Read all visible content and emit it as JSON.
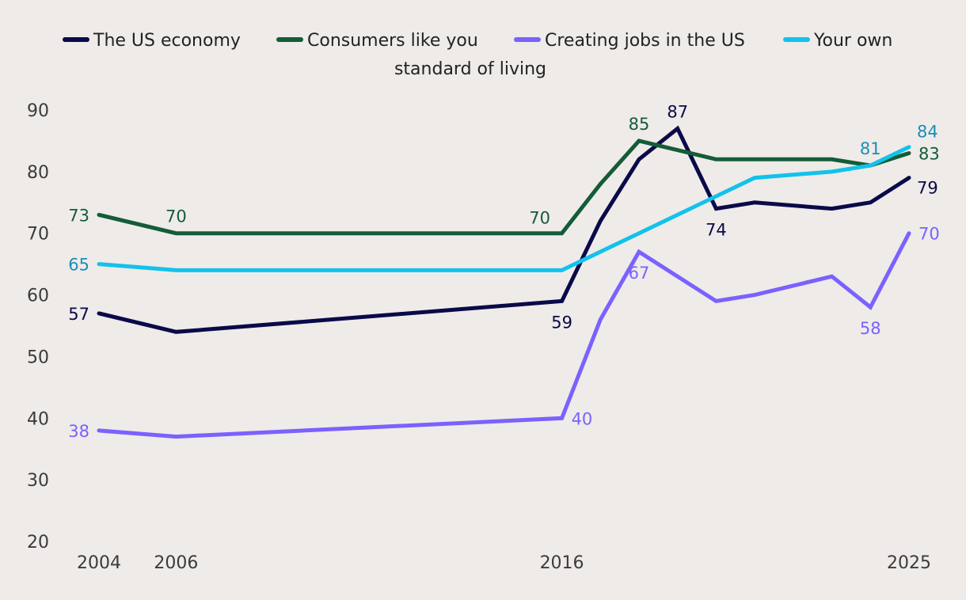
{
  "chart_data": {
    "type": "line",
    "title": "",
    "xlabel": "",
    "ylabel": "",
    "ylim": [
      20,
      90
    ],
    "yticks": [
      20,
      30,
      40,
      50,
      60,
      70,
      80,
      90
    ],
    "xlim": [
      2004,
      2025
    ],
    "xticks": [
      2004,
      2006,
      2016,
      2025
    ],
    "grid": false,
    "legend_position": "top",
    "series": [
      {
        "name": "The US economy",
        "color": "#0a0a4a",
        "points": [
          [
            2004,
            57
          ],
          [
            2006,
            54
          ],
          [
            2016,
            59
          ],
          [
            2017,
            72
          ],
          [
            2018,
            82
          ],
          [
            2019,
            87
          ],
          [
            2020,
            74
          ],
          [
            2021,
            75
          ],
          [
            2023,
            74
          ],
          [
            2024,
            75
          ],
          [
            2025,
            79
          ]
        ],
        "labels": [
          {
            "x": 2004,
            "y": 57,
            "text": "57",
            "pos": "left"
          },
          {
            "x": 2016,
            "y": 59,
            "text": "59",
            "pos": "below"
          },
          {
            "x": 2019,
            "y": 87,
            "text": "87",
            "pos": "above"
          },
          {
            "x": 2020,
            "y": 74,
            "text": "74",
            "pos": "below"
          },
          {
            "x": 2025,
            "y": 79,
            "text": "79",
            "pos": "right-below"
          }
        ]
      },
      {
        "name": "Consumers like you",
        "color": "#145c38",
        "points": [
          [
            2004,
            73
          ],
          [
            2006,
            70
          ],
          [
            2016,
            70
          ],
          [
            2017,
            78
          ],
          [
            2018,
            85
          ],
          [
            2020,
            82
          ],
          [
            2023,
            82
          ],
          [
            2024,
            81
          ],
          [
            2025,
            83
          ]
        ],
        "labels": [
          {
            "x": 2004,
            "y": 73,
            "text": "73",
            "pos": "left"
          },
          {
            "x": 2006,
            "y": 70,
            "text": "70",
            "pos": "above"
          },
          {
            "x": 2016,
            "y": 70,
            "text": "70",
            "pos": "above-left"
          },
          {
            "x": 2018,
            "y": 85,
            "text": "85",
            "pos": "above"
          },
          {
            "x": 2025,
            "y": 83,
            "text": "83",
            "pos": "right"
          }
        ]
      },
      {
        "name": "Creating jobs in the US",
        "color": "#7b61ff",
        "points": [
          [
            2004,
            38
          ],
          [
            2006,
            37
          ],
          [
            2016,
            40
          ],
          [
            2017,
            56
          ],
          [
            2018,
            67
          ],
          [
            2020,
            59
          ],
          [
            2021,
            60
          ],
          [
            2023,
            63
          ],
          [
            2024,
            58
          ],
          [
            2025,
            70
          ]
        ],
        "labels": [
          {
            "x": 2004,
            "y": 38,
            "text": "38",
            "pos": "left"
          },
          {
            "x": 2016,
            "y": 40,
            "text": "40",
            "pos": "right"
          },
          {
            "x": 2018,
            "y": 67,
            "text": "67",
            "pos": "below"
          },
          {
            "x": 2024,
            "y": 58,
            "text": "58",
            "pos": "below"
          },
          {
            "x": 2025,
            "y": 70,
            "text": "70",
            "pos": "right"
          }
        ]
      },
      {
        "name": "Your own standard of living",
        "color": "#12c2ec",
        "label_color": "#1a8fb8",
        "points": [
          [
            2004,
            65
          ],
          [
            2006,
            64
          ],
          [
            2016,
            64
          ],
          [
            2018,
            70
          ],
          [
            2020,
            76
          ],
          [
            2021,
            79
          ],
          [
            2023,
            80
          ],
          [
            2024,
            81
          ],
          [
            2025,
            84
          ]
        ],
        "labels": [
          {
            "x": 2004,
            "y": 65,
            "text": "65",
            "pos": "left"
          },
          {
            "x": 2024,
            "y": 81,
            "text": "81",
            "pos": "above"
          },
          {
            "x": 2025,
            "y": 84,
            "text": "84",
            "pos": "right-above"
          }
        ]
      }
    ],
    "legend": {
      "row1": [
        "The US economy",
        "Consumers like you",
        "Creating jobs in the US",
        "Your own"
      ],
      "row2": "standard of living"
    }
  }
}
